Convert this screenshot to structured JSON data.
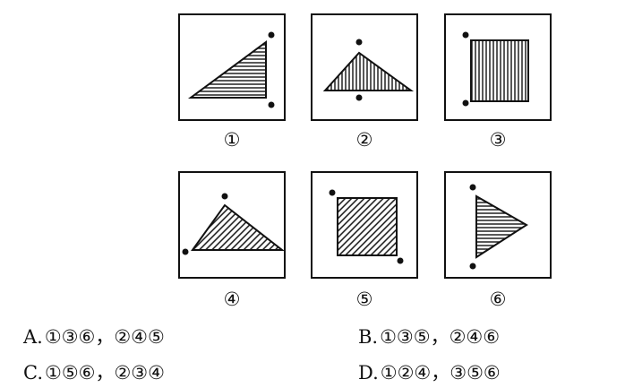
{
  "figures": [
    {
      "id": 1,
      "label": "①",
      "shape": "right-triangle",
      "hatch": "horizontal"
    },
    {
      "id": 2,
      "label": "②",
      "shape": "triangle",
      "hatch": "vertical"
    },
    {
      "id": 3,
      "label": "③",
      "shape": "square",
      "hatch": "vertical"
    },
    {
      "id": 4,
      "label": "④",
      "shape": "triangle",
      "hatch": "diagonal"
    },
    {
      "id": 5,
      "label": "⑤",
      "shape": "square",
      "hatch": "diagonal"
    },
    {
      "id": 6,
      "label": "⑥",
      "shape": "triangle",
      "hatch": "horizontal"
    }
  ],
  "options": [
    {
      "letter": "A.",
      "text": "①③⑥，②④⑤"
    },
    {
      "letter": "B.",
      "text": "①③⑤，②④⑥"
    },
    {
      "letter": "C.",
      "text": "①⑤⑥，②③④"
    },
    {
      "letter": "D.",
      "text": "①②④，③⑤⑥"
    }
  ],
  "colors": {
    "ink": "#111111",
    "background": "#ffffff"
  }
}
